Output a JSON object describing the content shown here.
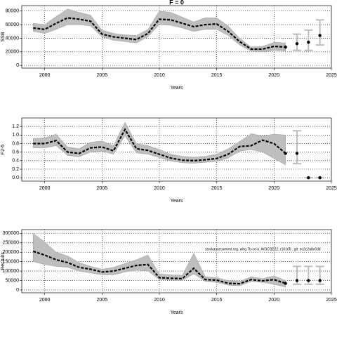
{
  "chart_data": [
    {
      "type": "line",
      "title": "F = 0",
      "xlabel": "Years",
      "ylabel": "SSB",
      "x": [
        1999,
        2000,
        2001,
        2002,
        2003,
        2004,
        2005,
        2006,
        2007,
        2008,
        2009,
        2010,
        2011,
        2012,
        2013,
        2014,
        2015,
        2016,
        2017,
        2018,
        2019,
        2020,
        2021
      ],
      "values": [
        55000,
        53000,
        62000,
        70000,
        68000,
        65000,
        46000,
        42000,
        40000,
        38000,
        47000,
        68000,
        67000,
        62000,
        57000,
        60000,
        61000,
        50000,
        35000,
        24000,
        24000,
        28000,
        27000
      ],
      "upper": [
        62000,
        60000,
        72000,
        83000,
        78000,
        74000,
        52000,
        47000,
        45000,
        44000,
        53000,
        80000,
        78000,
        71000,
        64000,
        70000,
        70000,
        58000,
        40000,
        27000,
        28000,
        34000,
        33000
      ],
      "lower": [
        50000,
        47000,
        53000,
        60000,
        60000,
        58000,
        42000,
        37000,
        35000,
        33000,
        42000,
        60000,
        59000,
        55000,
        50000,
        53000,
        53000,
        44000,
        30000,
        21000,
        20000,
        22000,
        21000
      ],
      "projection": {
        "x": [
          2022,
          2023,
          2024
        ],
        "values": [
          32000,
          34000,
          44000
        ],
        "lower": [
          22000,
          22000,
          30000
        ],
        "upper": [
          46000,
          52000,
          67000
        ]
      },
      "xlim": [
        1998,
        2025
      ],
      "xticks": [
        2000,
        2005,
        2010,
        2015,
        2020,
        2025
      ],
      "ylim": [
        -4000,
        88000
      ],
      "yticks": [
        0,
        20000,
        40000,
        60000,
        80000
      ],
      "color": "#000000",
      "band_color": "#bebebe",
      "grid": true
    },
    {
      "type": "line",
      "xlabel": "Years",
      "ylabel": "F2-5",
      "x": [
        1999,
        2000,
        2001,
        2002,
        2003,
        2004,
        2005,
        2006,
        2007,
        2008,
        2009,
        2010,
        2011,
        2012,
        2013,
        2014,
        2015,
        2016,
        2017,
        2018,
        2019,
        2020,
        2021
      ],
      "values": [
        0.8,
        0.8,
        0.87,
        0.6,
        0.57,
        0.7,
        0.72,
        0.63,
        1.13,
        0.68,
        0.64,
        0.55,
        0.46,
        0.41,
        0.4,
        0.42,
        0.45,
        0.55,
        0.73,
        0.75,
        0.88,
        0.8,
        0.57
      ],
      "upper": [
        0.92,
        0.93,
        1.02,
        0.72,
        0.68,
        0.83,
        0.86,
        0.75,
        1.3,
        0.8,
        0.75,
        0.66,
        0.55,
        0.5,
        0.48,
        0.5,
        0.55,
        0.68,
        0.85,
        1.03,
        0.98,
        1.02,
        1.0
      ],
      "lower": [
        0.7,
        0.7,
        0.75,
        0.52,
        0.49,
        0.6,
        0.62,
        0.55,
        0.98,
        0.58,
        0.55,
        0.47,
        0.39,
        0.35,
        0.34,
        0.36,
        0.38,
        0.46,
        0.62,
        0.66,
        0.6,
        0.45,
        0.3
      ],
      "projection": {
        "x": [
          2022,
          2023,
          2024
        ],
        "values": [
          0.57,
          0.0,
          0.0
        ],
        "lower": [
          0.33,
          0.0,
          0.0
        ],
        "upper": [
          1.1,
          0.0,
          0.0
        ]
      },
      "xlim": [
        1998,
        2025
      ],
      "xticks": [
        2000,
        2005,
        2010,
        2015,
        2020,
        2025
      ],
      "ylim": [
        -0.08,
        1.4
      ],
      "yticks": [
        {
          "value": 0,
          "label": "0.0"
        },
        0.2,
        0.4,
        0.6,
        0.8,
        {
          "value": 1,
          "label": "1.0"
        },
        1.2
      ],
      "color": "#000000",
      "band_color": "#bebebe",
      "grid": true
    },
    {
      "type": "line",
      "xlabel": "Years",
      "ylabel": "Recruits",
      "annotation": "stockassessment.org, whg.7b-ce-k_WGCSE22, r16105 , git: ec2c2a0c6dd",
      "x": [
        1999,
        2000,
        2001,
        2002,
        2003,
        2004,
        2005,
        2006,
        2007,
        2008,
        2009,
        2010,
        2011,
        2012,
        2013,
        2014,
        2015,
        2016,
        2017,
        2018,
        2019,
        2020,
        2021
      ],
      "values": [
        205000,
        185000,
        160000,
        145000,
        120000,
        110000,
        95000,
        100000,
        115000,
        130000,
        135000,
        65000,
        62000,
        60000,
        115000,
        55000,
        52000,
        35000,
        33000,
        55000,
        48000,
        55000,
        35000
      ],
      "upper": [
        300000,
        255000,
        200000,
        180000,
        145000,
        125000,
        110000,
        120000,
        140000,
        160000,
        185000,
        85000,
        80000,
        78000,
        195000,
        70000,
        65000,
        50000,
        45000,
        70000,
        60000,
        75000,
        50000
      ],
      "lower": [
        150000,
        135000,
        125000,
        120000,
        100000,
        90000,
        80000,
        80000,
        95000,
        105000,
        100000,
        55000,
        52000,
        50000,
        85000,
        45000,
        40000,
        25000,
        22000,
        45000,
        40000,
        30000,
        15000
      ],
      "projection": {
        "x": [
          2022,
          2023,
          2024
        ],
        "values": [
          50000,
          50000,
          50000
        ],
        "lower": [
          30000,
          30000,
          30000
        ],
        "upper": [
          125000,
          125000,
          125000
        ]
      },
      "xlim": [
        1998,
        2025
      ],
      "xticks": [
        2000,
        2005,
        2010,
        2015,
        2020,
        2025
      ],
      "ylim": [
        -15000,
        320000
      ],
      "yticks": [
        0,
        50000,
        100000,
        150000,
        200000,
        250000,
        300000
      ],
      "color": "#000000",
      "band_color": "#bebebe",
      "grid": true
    }
  ]
}
